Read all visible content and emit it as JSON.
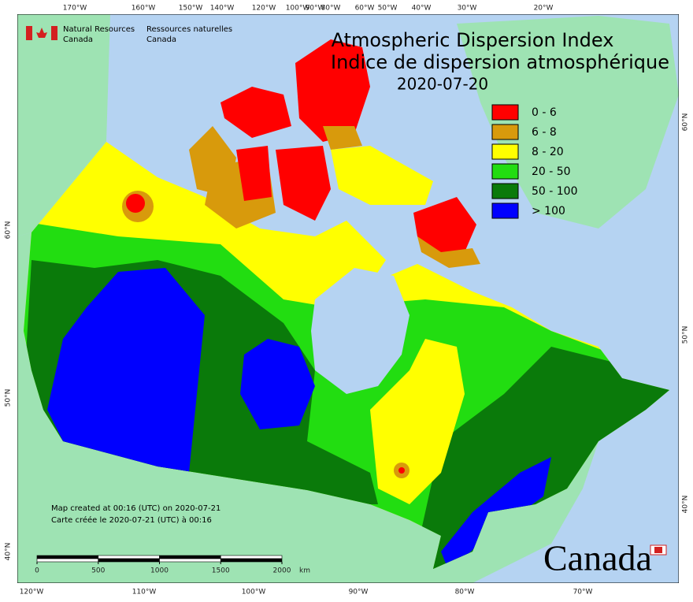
{
  "header": {
    "org_en_1": "Natural Resources",
    "org_en_2": "Canada",
    "org_fr_1": "Ressources naturelles",
    "org_fr_2": "Canada"
  },
  "title": {
    "en": "Atmospheric Dispersion Index",
    "fr": "Indice de dispersion atmosphérique",
    "date": "2020-07-20"
  },
  "legend": [
    {
      "label": "0 - 6",
      "color": "#ff0000"
    },
    {
      "label": "6 - 8",
      "color": "#d89a0c"
    },
    {
      "label": "8 - 20",
      "color": "#ffff00"
    },
    {
      "label": "20 - 50",
      "color": "#22dd11"
    },
    {
      "label": "50 - 100",
      "color": "#0a7a0a"
    },
    {
      "label": "> 100",
      "color": "#0000ff"
    }
  ],
  "lon_labels_top": [
    "170°W",
    "160°W",
    "150°W",
    "140°W",
    "120°W",
    "100°W",
    "90°W",
    "80°W",
    "60°W",
    "50°W",
    "40°W",
    "30°W",
    "20°W"
  ],
  "lon_labels_bottom": [
    "120°W",
    "110°W",
    "100°W",
    "90°W",
    "80°W",
    "70°W"
  ],
  "lat_labels_left": [
    "60°N",
    "50°N",
    "40°N"
  ],
  "lat_labels_right": [
    "60°N",
    "50°N",
    "40°N"
  ],
  "scale": {
    "ticks": [
      0,
      500,
      1000,
      1500,
      2000
    ],
    "unit": "km"
  },
  "footer": {
    "created_en": "Map created at 00:16 (UTC) on 2020-07-21",
    "created_fr": "Carte créée le 2020-07-21 (UTC) à 00:16"
  },
  "wordmark": "Canada"
}
